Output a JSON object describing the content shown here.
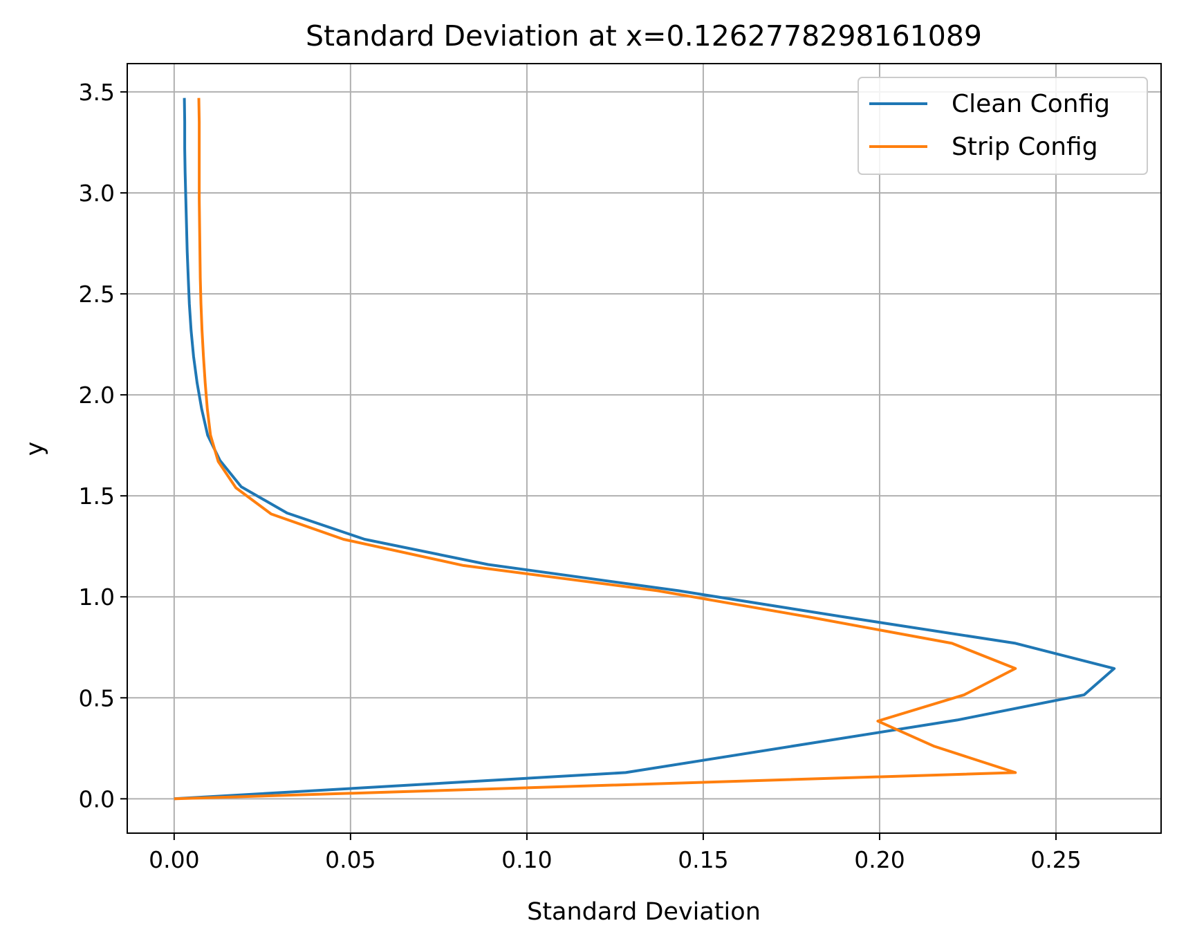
{
  "chart_data": {
    "type": "line",
    "title": "Standard Deviation at x=0.1262778298161089",
    "xlabel": "Standard Deviation",
    "ylabel": "y",
    "xlim": [
      -0.0133,
      0.2798
    ],
    "ylim": [
      -0.17,
      3.64
    ],
    "xticks": [
      0.0,
      0.05,
      0.1,
      0.15,
      0.2,
      0.25
    ],
    "xtick_labels": [
      "0.00",
      "0.05",
      "0.10",
      "0.15",
      "0.20",
      "0.25"
    ],
    "yticks": [
      0.0,
      0.5,
      1.0,
      1.5,
      2.0,
      2.5,
      3.0,
      3.5
    ],
    "ytick_labels": [
      "0.0",
      "0.5",
      "1.0",
      "1.5",
      "2.0",
      "2.5",
      "3.0",
      "3.5"
    ],
    "grid": true,
    "legend_position": "top-right",
    "series": [
      {
        "name": "Clean Config",
        "color": "#1f77b4",
        "points": [
          [
            0.0,
            0.0
          ],
          [
            0.128,
            0.13
          ],
          [
            0.175,
            0.26
          ],
          [
            0.222,
            0.39
          ],
          [
            0.258,
            0.515
          ],
          [
            0.2665,
            0.645
          ],
          [
            0.2385,
            0.77
          ],
          [
            0.19,
            0.9
          ],
          [
            0.143,
            1.03
          ],
          [
            0.089,
            1.16
          ],
          [
            0.054,
            1.285
          ],
          [
            0.032,
            1.415
          ],
          [
            0.019,
            1.545
          ],
          [
            0.013,
            1.675
          ],
          [
            0.0095,
            1.8
          ],
          [
            0.0078,
            1.93
          ],
          [
            0.0065,
            2.06
          ],
          [
            0.0055,
            2.19
          ],
          [
            0.0048,
            2.32
          ],
          [
            0.0043,
            2.45
          ],
          [
            0.004,
            2.58
          ],
          [
            0.0037,
            2.71
          ],
          [
            0.0035,
            2.84
          ],
          [
            0.0033,
            2.97
          ],
          [
            0.0031,
            3.1
          ],
          [
            0.003,
            3.22
          ],
          [
            0.003,
            3.35
          ],
          [
            0.0029,
            3.47
          ]
        ]
      },
      {
        "name": "Strip Config",
        "color": "#ff7f0e",
        "points": [
          [
            0.0,
            0.0
          ],
          [
            0.2385,
            0.13
          ],
          [
            0.2155,
            0.26
          ],
          [
            0.1995,
            0.385
          ],
          [
            0.224,
            0.515
          ],
          [
            0.2385,
            0.645
          ],
          [
            0.2205,
            0.77
          ],
          [
            0.18,
            0.9
          ],
          [
            0.137,
            1.03
          ],
          [
            0.082,
            1.155
          ],
          [
            0.048,
            1.285
          ],
          [
            0.0275,
            1.41
          ],
          [
            0.0175,
            1.54
          ],
          [
            0.0125,
            1.67
          ],
          [
            0.0103,
            1.8
          ],
          [
            0.0094,
            1.93
          ],
          [
            0.0088,
            2.06
          ],
          [
            0.0083,
            2.19
          ],
          [
            0.0079,
            2.32
          ],
          [
            0.0076,
            2.45
          ],
          [
            0.0074,
            2.58
          ],
          [
            0.0073,
            2.71
          ],
          [
            0.0072,
            2.84
          ],
          [
            0.0071,
            2.97
          ],
          [
            0.0071,
            3.1
          ],
          [
            0.0071,
            3.22
          ],
          [
            0.0071,
            3.35
          ],
          [
            0.007,
            3.47
          ]
        ]
      }
    ]
  }
}
